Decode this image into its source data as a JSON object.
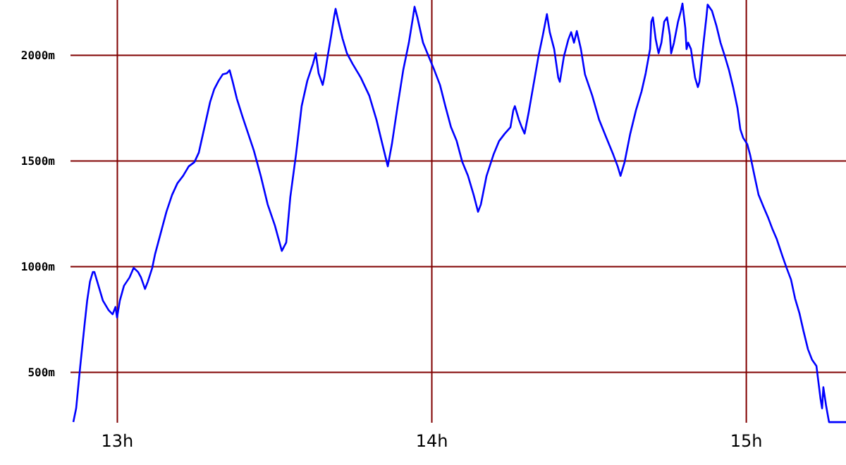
{
  "chart_data": {
    "type": "line",
    "xlim": [
      12.851,
      15.317
    ],
    "ylim": [
      262,
      2262
    ],
    "xticks": [
      {
        "value": 13,
        "label": "13h"
      },
      {
        "value": 14,
        "label": "14h"
      },
      {
        "value": 15,
        "label": "15h"
      }
    ],
    "yticks": [
      {
        "value": 500,
        "label": "500m"
      },
      {
        "value": 1000,
        "label": "1000m"
      },
      {
        "value": 1500,
        "label": "1500m"
      },
      {
        "value": 2000,
        "label": "2000m"
      }
    ],
    "grid": true,
    "marker": "none",
    "line_style": "solid",
    "x": [
      12.86,
      12.869,
      12.882,
      12.896,
      12.904,
      12.913,
      12.922,
      12.927,
      12.94,
      12.954,
      12.972,
      12.985,
      12.994,
      12.999,
      13.008,
      13.021,
      13.039,
      13.052,
      13.066,
      13.075,
      13.088,
      13.097,
      13.111,
      13.12,
      13.138,
      13.156,
      13.174,
      13.191,
      13.209,
      13.227,
      13.245,
      13.259,
      13.277,
      13.295,
      13.308,
      13.322,
      13.335,
      13.348,
      13.357,
      13.366,
      13.38,
      13.398,
      13.416,
      13.434,
      13.456,
      13.478,
      13.501,
      13.523,
      13.537,
      13.55,
      13.568,
      13.586,
      13.604,
      13.622,
      13.631,
      13.64,
      13.653,
      13.658,
      13.667,
      13.68,
      13.689,
      13.694,
      13.703,
      13.716,
      13.73,
      13.748,
      13.774,
      13.801,
      13.824,
      13.837,
      13.851,
      13.86,
      13.873,
      13.891,
      13.909,
      13.927,
      13.94,
      13.945,
      13.954,
      13.972,
      13.994,
      14.008,
      14.026,
      14.043,
      14.061,
      14.079,
      14.097,
      14.115,
      14.133,
      14.147,
      14.156,
      14.174,
      14.196,
      14.214,
      14.232,
      14.25,
      14.259,
      14.264,
      14.277,
      14.286,
      14.295,
      14.308,
      14.322,
      14.339,
      14.353,
      14.366,
      14.375,
      14.389,
      14.402,
      14.407,
      14.42,
      14.434,
      14.443,
      14.452,
      14.461,
      14.474,
      14.487,
      14.51,
      14.532,
      14.555,
      14.577,
      14.591,
      14.6,
      14.613,
      14.631,
      14.649,
      14.667,
      14.68,
      14.694,
      14.698,
      14.703,
      14.712,
      14.721,
      14.73,
      14.739,
      14.748,
      14.757,
      14.761,
      14.77,
      14.783,
      14.792,
      14.797,
      14.806,
      14.81,
      14.815,
      14.824,
      14.837,
      14.846,
      14.851,
      14.864,
      14.873,
      14.877,
      14.891,
      14.905,
      14.918,
      14.932,
      14.945,
      14.958,
      14.972,
      14.981,
      14.99,
      15.003,
      15.012,
      15.026,
      15.039,
      15.057,
      15.07,
      15.084,
      15.097,
      15.115,
      15.128,
      15.142,
      15.155,
      15.169,
      15.182,
      15.196,
      15.209,
      15.223,
      15.236,
      15.241,
      15.245,
      15.254,
      15.263,
      15.317
    ],
    "series": [
      {
        "color": "#0000ff",
        "values": [
          265,
          330,
          530,
          730,
          840,
          930,
          975,
          975,
          910,
          840,
          795,
          775,
          810,
          760,
          840,
          910,
          950,
          995,
          975,
          950,
          895,
          930,
          995,
          1060,
          1160,
          1260,
          1340,
          1395,
          1430,
          1475,
          1495,
          1540,
          1660,
          1780,
          1840,
          1880,
          1910,
          1915,
          1930,
          1880,
          1795,
          1710,
          1630,
          1550,
          1430,
          1295,
          1195,
          1075,
          1115,
          1330,
          1530,
          1760,
          1880,
          1960,
          2010,
          1915,
          1860,
          1895,
          1980,
          2095,
          2180,
          2220,
          2160,
          2080,
          2010,
          1960,
          1895,
          1810,
          1695,
          1615,
          1530,
          1475,
          1580,
          1760,
          1930,
          2060,
          2180,
          2230,
          2180,
          2060,
          1980,
          1930,
          1860,
          1760,
          1660,
          1595,
          1495,
          1430,
          1340,
          1260,
          1295,
          1430,
          1530,
          1595,
          1630,
          1660,
          1740,
          1760,
          1695,
          1660,
          1630,
          1730,
          1850,
          1995,
          2095,
          2195,
          2110,
          2030,
          1895,
          1875,
          1995,
          2075,
          2110,
          2060,
          2115,
          2030,
          1910,
          1810,
          1695,
          1610,
          1530,
          1475,
          1430,
          1495,
          1630,
          1740,
          1830,
          1915,
          2030,
          2160,
          2180,
          2075,
          2010,
          2060,
          2160,
          2180,
          2095,
          2010,
          2060,
          2160,
          2210,
          2245,
          2130,
          2030,
          2060,
          2030,
          1895,
          1850,
          1875,
          2060,
          2180,
          2240,
          2210,
          2140,
          2060,
          1995,
          1930,
          1850,
          1750,
          1650,
          1610,
          1580,
          1530,
          1430,
          1340,
          1275,
          1230,
          1175,
          1130,
          1050,
          995,
          940,
          850,
          780,
          695,
          610,
          560,
          530,
          375,
          330,
          430,
          340,
          265,
          265
        ]
      }
    ]
  }
}
